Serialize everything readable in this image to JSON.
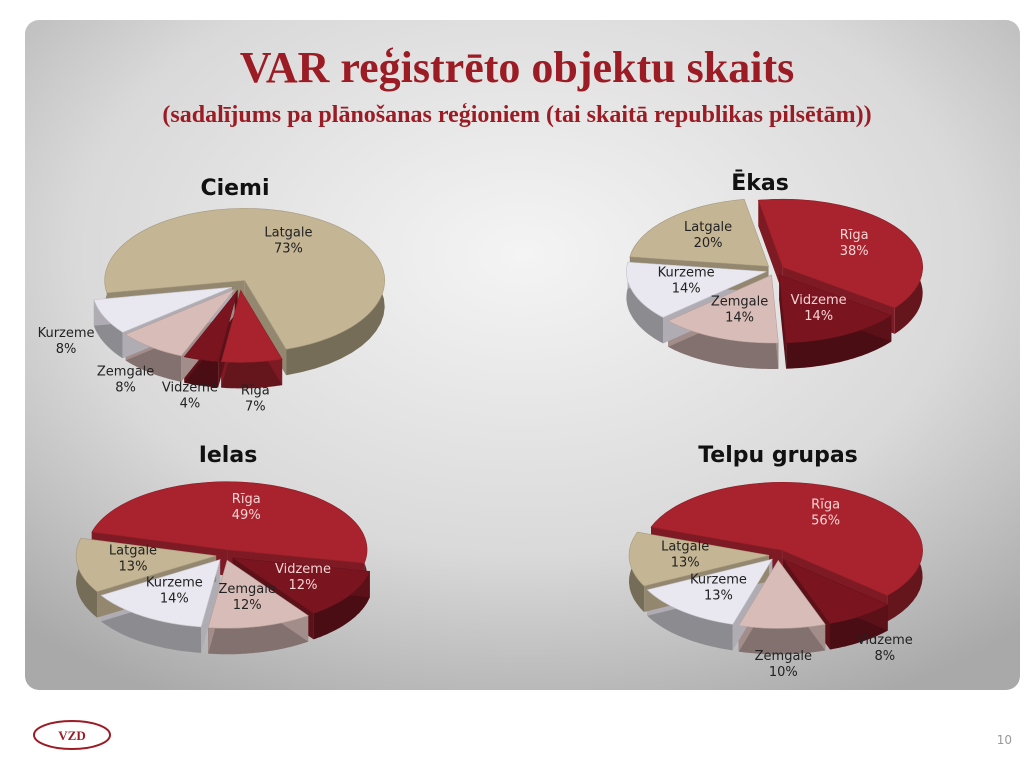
{
  "title": "VAR reģistrēto objektu skaits",
  "subtitle": "(sadalījums pa plānošanas reģioniem (tai skaitā republikas pilsētām))",
  "logo_text": "VZD",
  "page_number": "10",
  "chart_data": [
    {
      "type": "pie",
      "title": "Ciemi",
      "categories": [
        "Latgale",
        "Rīga",
        "Vidzeme",
        "Zemgale",
        "Kurzeme"
      ],
      "values": [
        73,
        7,
        4,
        8,
        8
      ],
      "value_labels": [
        "73%",
        "7%",
        "4%",
        "8%",
        "8%"
      ],
      "colors": [
        "#c4b594",
        "#a8232e",
        "#7a1520",
        "#d8bcb8",
        "#e9e7ef"
      ]
    },
    {
      "type": "pie",
      "title": "Ēkas",
      "categories": [
        "Rīga",
        "Vidzeme",
        "Zemgale",
        "Kurzeme",
        "Latgale"
      ],
      "values": [
        38,
        14,
        14,
        14,
        20
      ],
      "value_labels": [
        "38%",
        "14%",
        "14%",
        "14%",
        "20%"
      ],
      "colors": [
        "#a8232e",
        "#7a1520",
        "#d8bcb8",
        "#e9e7ef",
        "#c4b594"
      ]
    },
    {
      "type": "pie",
      "title": "Ielas",
      "categories": [
        "Rīga",
        "Vidzeme",
        "Zemgale",
        "Kurzeme",
        "Latgale"
      ],
      "values": [
        49,
        12,
        12,
        14,
        13
      ],
      "value_labels": [
        "49%",
        "12%",
        "12%",
        "14%",
        "13%"
      ],
      "colors": [
        "#a8232e",
        "#7a1520",
        "#d8bcb8",
        "#e9e7ef",
        "#c4b594"
      ]
    },
    {
      "type": "pie",
      "title": "Telpu grupas",
      "categories": [
        "Rīga",
        "Vidzeme",
        "Zemgale",
        "Kurzeme",
        "Latgale"
      ],
      "values": [
        56,
        8,
        10,
        13,
        13
      ],
      "value_labels": [
        "56%",
        "8%",
        "10%",
        "13%",
        "13%"
      ],
      "colors": [
        "#a8232e",
        "#7a1520",
        "#d8bcb8",
        "#e9e7ef",
        "#c4b594"
      ]
    }
  ]
}
